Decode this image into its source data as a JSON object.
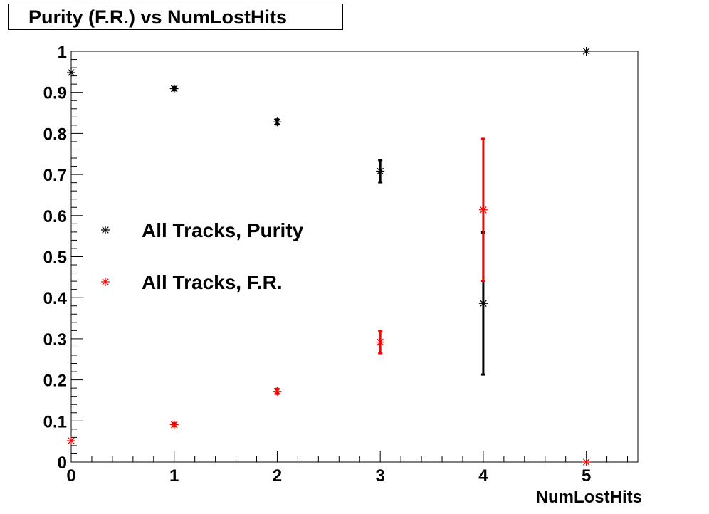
{
  "chart_data": {
    "type": "scatter",
    "title": "Purity (F.R.) vs NumLostHits",
    "xlabel": "NumLostHits",
    "ylabel": "",
    "xlim": [
      0,
      5.5
    ],
    "ylim": [
      0,
      1
    ],
    "x_ticks": [
      "0",
      "1",
      "2",
      "3",
      "4",
      "5"
    ],
    "y_ticks": [
      "0",
      "0.1",
      "0.2",
      "0.3",
      "0.4",
      "0.5",
      "0.6",
      "0.7",
      "0.8",
      "0.9",
      "1"
    ],
    "grid": false,
    "legend_position": "middle-left",
    "series": [
      {
        "name": "All Tracks, Purity",
        "color": "#000000",
        "marker": "asterisk",
        "x": [
          0,
          1,
          2,
          3,
          4,
          5
        ],
        "y": [
          0.948,
          0.909,
          0.828,
          0.708,
          0.386,
          1.0
        ],
        "err": [
          0.0,
          0.004,
          0.006,
          0.027,
          0.173,
          0.0
        ]
      },
      {
        "name": "All Tracks, F.R.",
        "color": "#ff0000",
        "marker": "asterisk",
        "x": [
          0,
          1,
          2,
          3,
          4,
          5
        ],
        "y": [
          0.052,
          0.091,
          0.172,
          0.292,
          0.614,
          0.0
        ],
        "err": [
          0.0,
          0.004,
          0.006,
          0.027,
          0.173,
          0.0
        ]
      }
    ]
  }
}
